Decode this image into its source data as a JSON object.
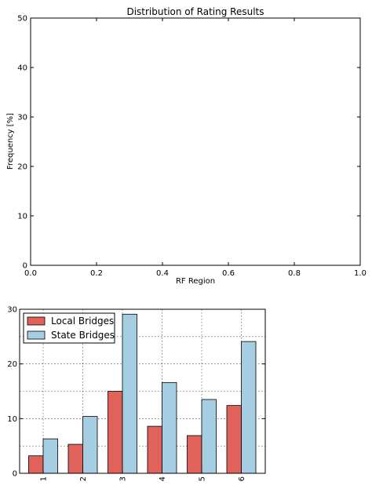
{
  "chart_data": [
    {
      "type": "line",
      "title": "Distribution of Rating Results",
      "xlabel": "RF Region",
      "ylabel": "Frequency [%]",
      "xlim": [
        0.0,
        1.0
      ],
      "ylim": [
        0,
        50
      ],
      "xticks": [
        "0.0",
        "0.2",
        "0.4",
        "0.6",
        "0.8",
        "1.0"
      ],
      "yticks": [
        "0",
        "10",
        "20",
        "30",
        "40",
        "50"
      ],
      "series": [],
      "grid": false
    },
    {
      "type": "bar",
      "categories": [
        "1",
        "2",
        "3",
        "4",
        "5",
        "6"
      ],
      "ylim": [
        0,
        30
      ],
      "yticks": [
        "0",
        "10",
        "20",
        "30"
      ],
      "grid": true,
      "legend_position": "top-left",
      "series": [
        {
          "name": "Local Bridges",
          "color": "#e0625a",
          "values": [
            3.2,
            5.3,
            15.0,
            8.6,
            6.9,
            12.4
          ]
        },
        {
          "name": "State Bridges",
          "color": "#a6cee3",
          "values": [
            6.3,
            10.4,
            29.1,
            16.6,
            13.5,
            24.1
          ]
        }
      ]
    }
  ]
}
